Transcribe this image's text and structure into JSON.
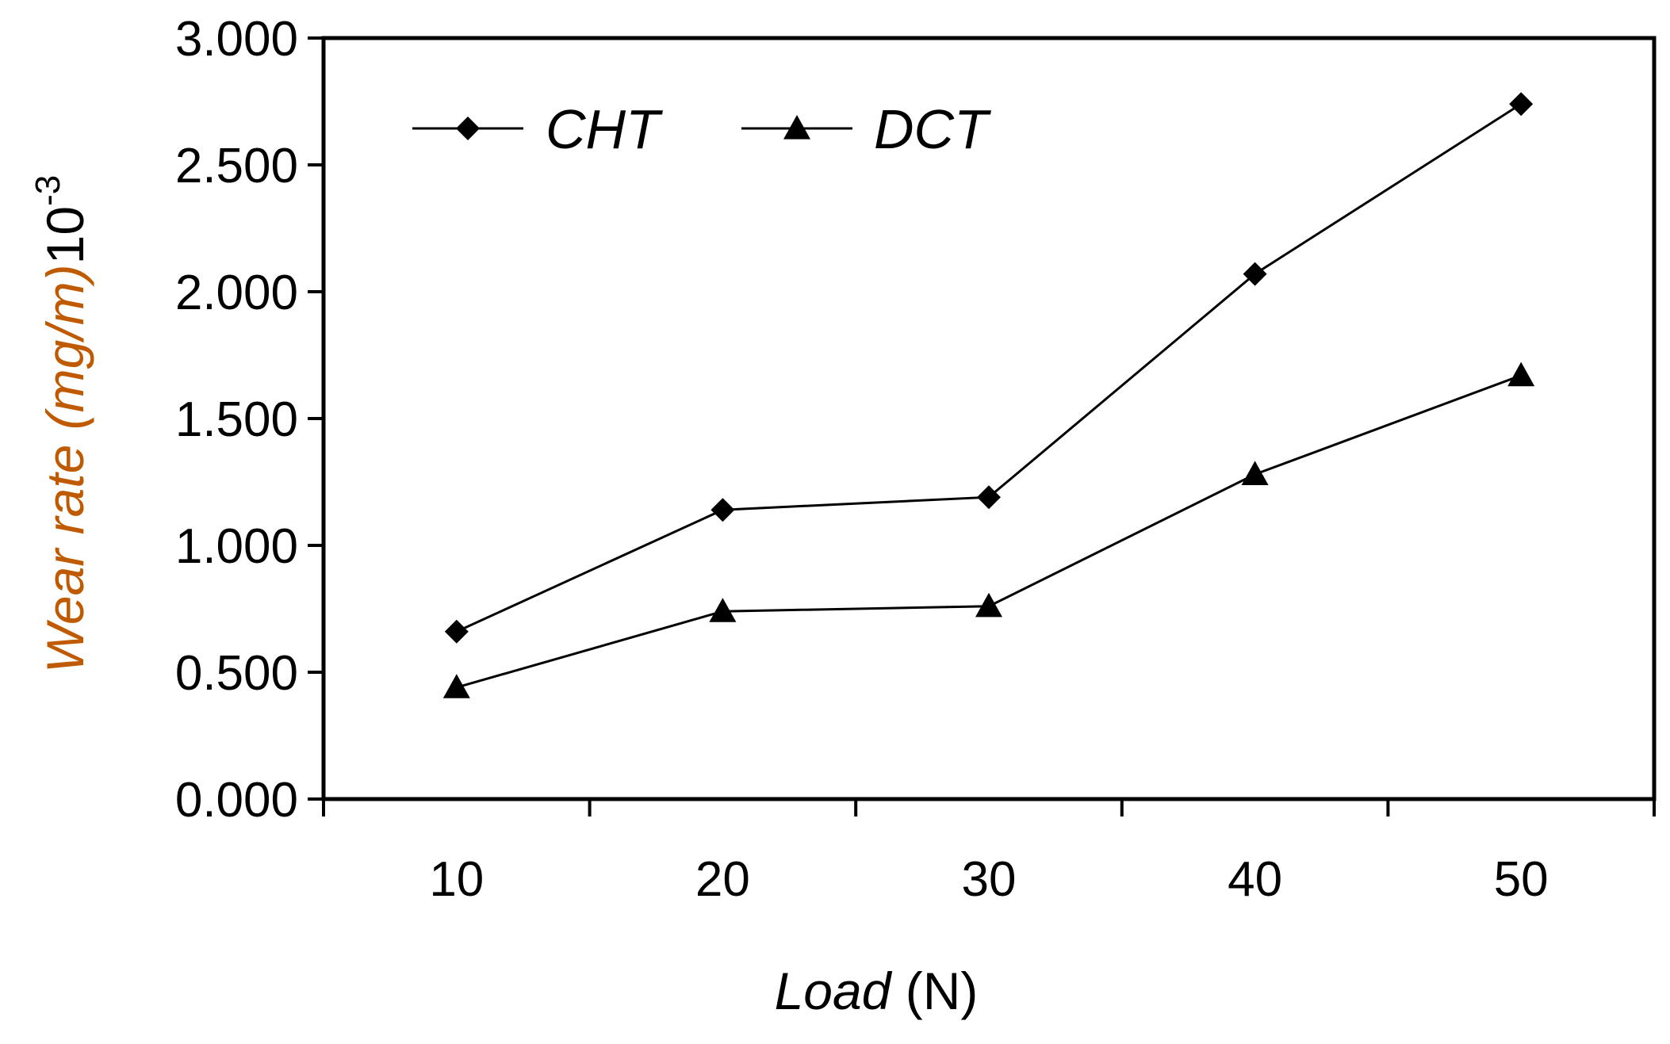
{
  "chart_data": {
    "type": "line",
    "title": "",
    "xlabel": {
      "italic": "Load",
      "rest": " (N)"
    },
    "ylabel": {
      "italic": "Wear rate (mg/m)",
      "base": "10",
      "exp": "-3"
    },
    "categories": [
      "10",
      "20",
      "30",
      "40",
      "50"
    ],
    "ylim": [
      0,
      3
    ],
    "yticks": [
      "0.000",
      "0.500",
      "1.000",
      "1.500",
      "2.000",
      "2.500",
      "3.000"
    ],
    "grid": false,
    "legend_position": "top-left",
    "series": [
      {
        "name": "CHT",
        "marker": "diamond",
        "values": [
          0.66,
          1.14,
          1.19,
          2.07,
          2.74
        ]
      },
      {
        "name": "DCT",
        "marker": "triangle",
        "values": [
          0.44,
          0.74,
          0.76,
          1.28,
          1.67
        ]
      }
    ],
    "colors": {
      "line": "#000000",
      "ylabel": "#c05a00",
      "text": "#000000"
    }
  }
}
